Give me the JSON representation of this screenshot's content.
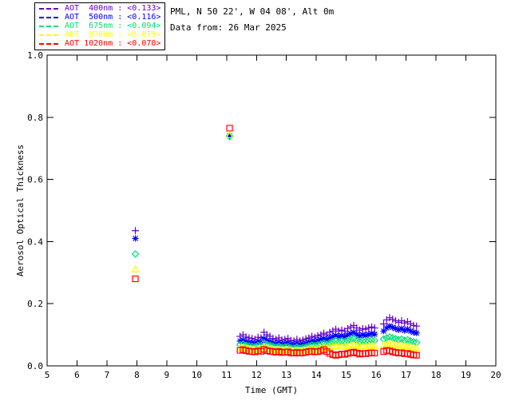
{
  "page": {
    "background": "#ffffff"
  },
  "header": {
    "station": "PML, N 50 22', W 04 08', Alt 0m",
    "date": "Data from: 26 Mar 2025"
  },
  "legend": {
    "entries": [
      {
        "label": "AOT  400nm : <0.133>",
        "color": "#6600CC",
        "marker": "plus"
      },
      {
        "label": "AOT  500nm : <0.116>",
        "color": "#0000FF",
        "marker": "asterisk"
      },
      {
        "label": "AOT  675nm : <0.094>",
        "color": "#00DC78",
        "marker": "diamond"
      },
      {
        "label": "AOT  870nm : <0.079>",
        "color": "#FFFF00",
        "marker": "triangle"
      },
      {
        "label": "AOT 1020nm : <0.070>",
        "color": "#FF0000",
        "marker": "square"
      }
    ]
  },
  "chart_data": {
    "type": "scatter",
    "title": "",
    "xlabel": "Time (GMT)",
    "ylabel": "Aerosol Optical Thickness",
    "xlim": [
      5,
      20
    ],
    "ylim": [
      0.0,
      1.0
    ],
    "xticks": [
      5,
      6,
      7,
      8,
      9,
      10,
      11,
      12,
      13,
      14,
      15,
      16,
      17,
      18,
      19,
      20
    ],
    "yticks": [
      0.0,
      0.2,
      0.4,
      0.6,
      0.8,
      1.0
    ],
    "grid": false,
    "legend_position": "top-left-outside",
    "x": [
      7.95,
      11.1,
      11.45,
      11.55,
      11.65,
      11.75,
      11.85,
      11.95,
      12.05,
      12.15,
      12.25,
      12.35,
      12.45,
      12.55,
      12.65,
      12.75,
      12.85,
      12.95,
      13.05,
      13.15,
      13.25,
      13.35,
      13.45,
      13.55,
      13.65,
      13.75,
      13.85,
      13.95,
      14.05,
      14.15,
      14.25,
      14.35,
      14.45,
      14.55,
      14.65,
      14.75,
      14.85,
      14.95,
      15.05,
      15.15,
      15.25,
      15.35,
      15.45,
      15.55,
      15.65,
      15.75,
      15.85,
      15.95,
      16.25,
      16.35,
      16.45,
      16.55,
      16.65,
      16.75,
      16.85,
      16.95,
      17.05,
      17.15,
      17.25,
      17.35
    ],
    "series": [
      {
        "name": "AOT 400nm",
        "mean_label": "<0.133>",
        "color": "#6600CC",
        "marker": "plus",
        "values": [
          0.435,
          0.74,
          0.095,
          0.1,
          0.093,
          0.09,
          0.088,
          0.085,
          0.092,
          0.09,
          0.108,
          0.1,
          0.095,
          0.088,
          0.085,
          0.09,
          0.083,
          0.085,
          0.088,
          0.082,
          0.08,
          0.085,
          0.08,
          0.083,
          0.087,
          0.09,
          0.095,
          0.092,
          0.097,
          0.1,
          0.105,
          0.1,
          0.108,
          0.112,
          0.118,
          0.112,
          0.115,
          0.112,
          0.12,
          0.125,
          0.13,
          0.122,
          0.115,
          0.12,
          0.118,
          0.122,
          0.125,
          0.122,
          0.135,
          0.148,
          0.155,
          0.15,
          0.145,
          0.14,
          0.145,
          0.138,
          0.142,
          0.135,
          0.13,
          0.128
        ]
      },
      {
        "name": "AOT 500nm",
        "mean_label": "<0.116>",
        "color": "#0000FF",
        "marker": "asterisk",
        "values": [
          0.41,
          0.74,
          0.08,
          0.083,
          0.078,
          0.075,
          0.074,
          0.072,
          0.078,
          0.075,
          0.088,
          0.082,
          0.078,
          0.074,
          0.071,
          0.075,
          0.07,
          0.072,
          0.074,
          0.069,
          0.068,
          0.072,
          0.068,
          0.07,
          0.073,
          0.076,
          0.08,
          0.078,
          0.082,
          0.085,
          0.088,
          0.084,
          0.09,
          0.094,
          0.098,
          0.094,
          0.097,
          0.094,
          0.1,
          0.104,
          0.108,
          0.101,
          0.096,
          0.1,
          0.098,
          0.101,
          0.104,
          0.102,
          0.112,
          0.122,
          0.128,
          0.124,
          0.12,
          0.116,
          0.12,
          0.114,
          0.118,
          0.112,
          0.108,
          0.106
        ]
      },
      {
        "name": "AOT 675nm",
        "mean_label": "<0.094>",
        "color": "#00DC78",
        "marker": "diamond",
        "values": [
          0.36,
          0.738,
          0.068,
          0.07,
          0.066,
          0.064,
          0.063,
          0.061,
          0.066,
          0.064,
          0.074,
          0.069,
          0.066,
          0.063,
          0.06,
          0.063,
          0.059,
          0.061,
          0.062,
          0.058,
          0.057,
          0.06,
          0.057,
          0.059,
          0.061,
          0.064,
          0.067,
          0.065,
          0.068,
          0.07,
          0.073,
          0.07,
          0.074,
          0.077,
          0.08,
          0.077,
          0.079,
          0.077,
          0.081,
          0.084,
          0.087,
          0.082,
          0.078,
          0.08,
          0.079,
          0.081,
          0.083,
          0.082,
          0.086,
          0.09,
          0.093,
          0.09,
          0.087,
          0.084,
          0.086,
          0.082,
          0.084,
          0.08,
          0.077,
          0.075
        ]
      },
      {
        "name": "AOT 870nm",
        "mean_label": "<0.079>",
        "color": "#FFFF00",
        "marker": "triangle",
        "values": [
          0.31,
          0.742,
          0.056,
          0.058,
          0.055,
          0.053,
          0.052,
          0.051,
          0.054,
          0.053,
          0.06,
          0.056,
          0.054,
          0.052,
          0.05,
          0.052,
          0.049,
          0.05,
          0.051,
          0.048,
          0.047,
          0.049,
          0.047,
          0.048,
          0.05,
          0.052,
          0.054,
          0.052,
          0.054,
          0.056,
          0.058,
          0.056,
          0.059,
          0.061,
          0.063,
          0.061,
          0.062,
          0.061,
          0.063,
          0.065,
          0.067,
          0.064,
          0.061,
          0.062,
          0.061,
          0.063,
          0.064,
          0.063,
          0.066,
          0.068,
          0.07,
          0.068,
          0.066,
          0.064,
          0.065,
          0.062,
          0.063,
          0.06,
          0.058,
          0.056
        ]
      },
      {
        "name": "AOT 1020nm",
        "mean_label": "<0.070>",
        "color": "#FF0000",
        "marker": "square",
        "values": [
          0.28,
          0.765,
          0.05,
          0.052,
          0.049,
          0.047,
          0.046,
          0.045,
          0.048,
          0.047,
          0.053,
          0.049,
          0.047,
          0.046,
          0.044,
          0.046,
          0.043,
          0.044,
          0.045,
          0.042,
          0.041,
          0.043,
          0.041,
          0.042,
          0.044,
          0.046,
          0.047,
          0.045,
          0.046,
          0.048,
          0.052,
          0.046,
          0.04,
          0.036,
          0.034,
          0.036,
          0.038,
          0.037,
          0.04,
          0.042,
          0.044,
          0.041,
          0.038,
          0.04,
          0.039,
          0.041,
          0.042,
          0.041,
          0.046,
          0.05,
          0.048,
          0.045,
          0.043,
          0.041,
          0.042,
          0.039,
          0.04,
          0.037,
          0.035,
          0.034
        ]
      }
    ]
  }
}
